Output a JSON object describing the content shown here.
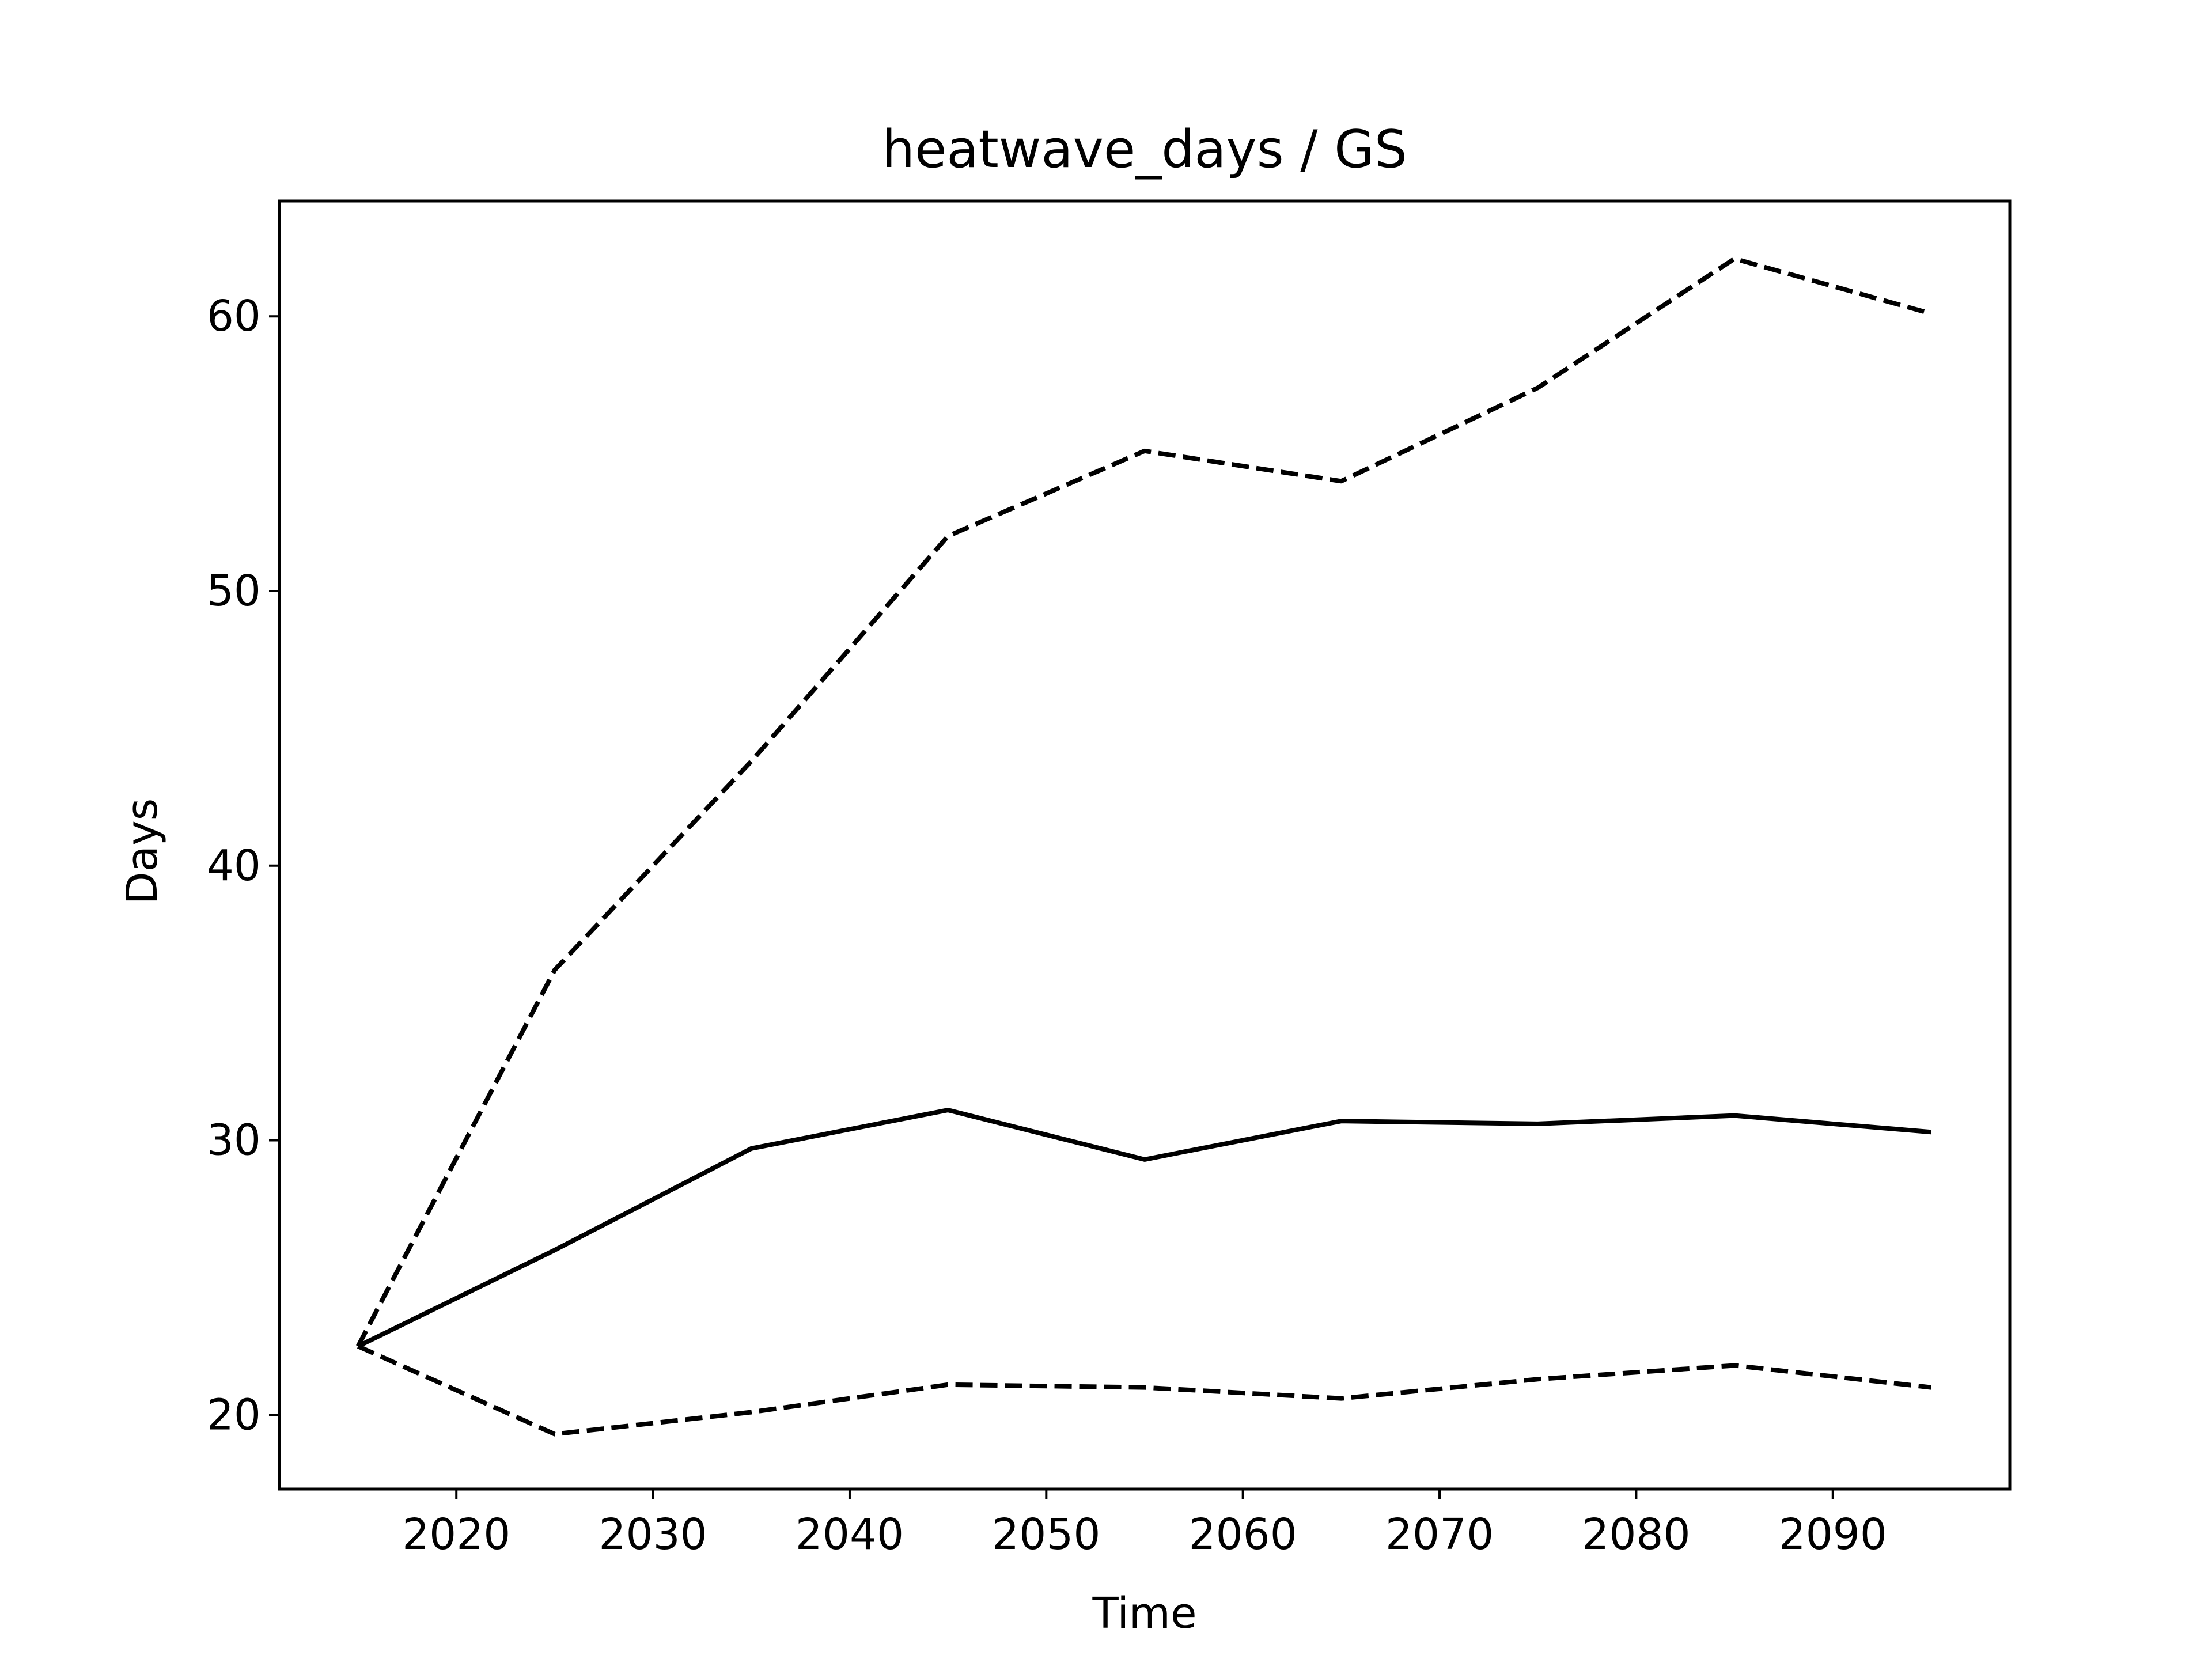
{
  "chart_data": {
    "type": "line",
    "title": "heatwave_days / GS",
    "xlabel": "Time",
    "ylabel": "Days",
    "xlim": [
      2011,
      2099
    ],
    "ylim": [
      17.3,
      64.2
    ],
    "xticks": [
      2020,
      2030,
      2040,
      2050,
      2060,
      2070,
      2080,
      2090
    ],
    "yticks": [
      20,
      30,
      40,
      50,
      60
    ],
    "grid": false,
    "legend": "none",
    "x": [
      2015,
      2025,
      2035,
      2045,
      2055,
      2065,
      2075,
      2085,
      2095
    ],
    "series": [
      {
        "style": "dashed",
        "color": "#000000",
        "values": [
          22.5,
          36.2,
          43.8,
          52.0,
          55.1,
          54.0,
          57.4,
          62.1,
          60.1
        ]
      },
      {
        "style": "solid",
        "color": "#000000",
        "values": [
          22.5,
          26.0,
          29.7,
          31.1,
          29.3,
          30.7,
          30.6,
          30.9,
          30.3
        ]
      },
      {
        "style": "dashed",
        "color": "#000000",
        "values": [
          22.5,
          19.3,
          20.1,
          21.1,
          21.0,
          20.6,
          21.3,
          21.8,
          21.0
        ]
      }
    ]
  }
}
